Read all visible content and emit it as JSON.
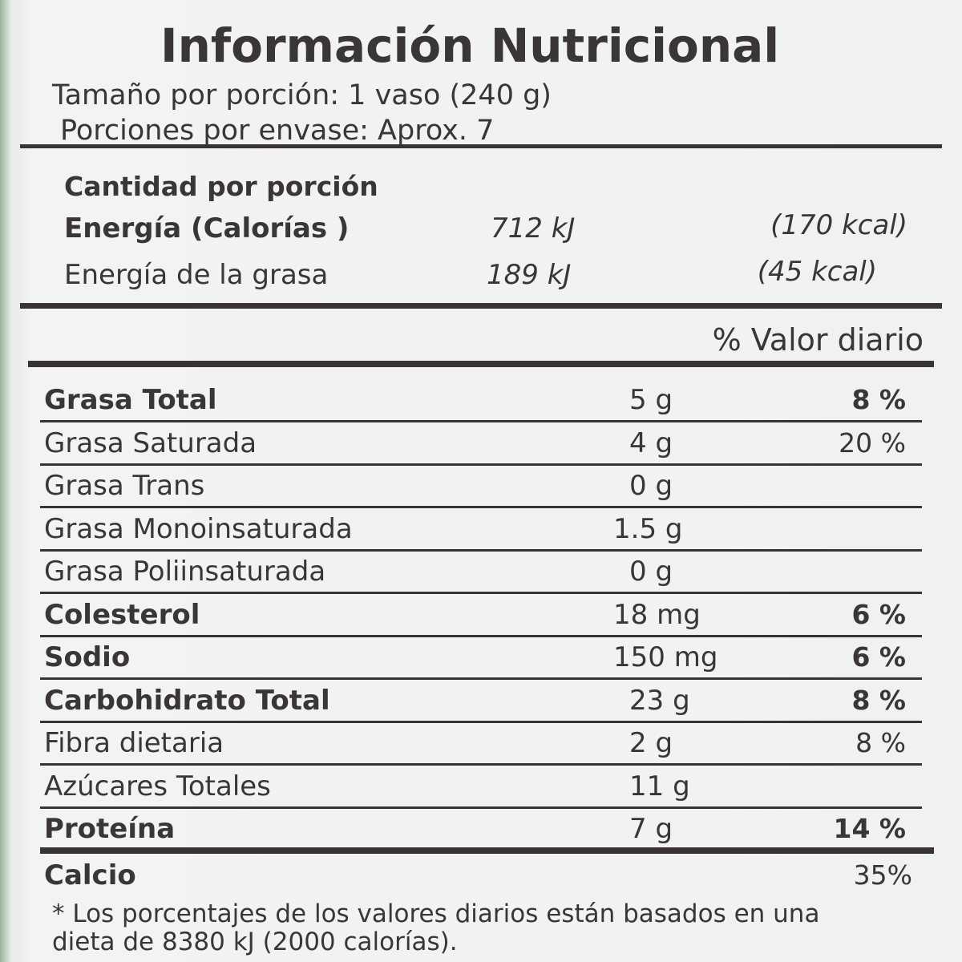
{
  "title": "Información Nutricional",
  "serving": [
    "Tamaño por porción: 1 vaso (240 g)",
    "Porciones por envase: Aprox. 7"
  ],
  "amount_header": "Cantidad por porción",
  "energy": [
    {
      "label": "Energía  (Calorías )",
      "kj": "712 kJ",
      "kcal": "(170 kcal)",
      "bold": true
    },
    {
      "label": "Energía de la grasa",
      "kj": "189 kJ",
      "kcal": "(45 kcal)"
    }
  ],
  "daily_value_header": "% Valor diario",
  "rows": [
    {
      "name": "Grasa Total",
      "amount": "5 g",
      "percent": "8 %",
      "bold": true
    },
    {
      "name": "Grasa Saturada",
      "amount": "4 g",
      "percent": "20 %"
    },
    {
      "name": "Grasa Trans",
      "amount": "0 g"
    },
    {
      "name": "Grasa Monoinsaturada",
      "amount": "1.5 g"
    },
    {
      "name": "Grasa Poliinsaturada",
      "amount": "0 g"
    },
    {
      "name": "Colesterol",
      "amount": "18 mg",
      "percent": "6 %",
      "bold": true
    },
    {
      "name": "Sodio",
      "amount": "150 mg",
      "percent": "6 %",
      "bold": true
    },
    {
      "name": "Carbohidrato Total",
      "amount": "23 g",
      "percent": "8 %",
      "bold": true
    },
    {
      "name": "Fibra dietaria",
      "amount": "2 g",
      "percent": "8 %"
    },
    {
      "name": "Azúcares Totales",
      "amount": "11 g"
    },
    {
      "name": "Proteína",
      "amount": "7 g",
      "percent": "14 %",
      "bold": true
    },
    {
      "name": "Calcio",
      "percent": "35%",
      "bold": true
    }
  ],
  "footnote": [
    "* Los porcentajes de los valores diarios están basados en una",
    "dieta de 8380 kJ (2000 calorías)."
  ]
}
